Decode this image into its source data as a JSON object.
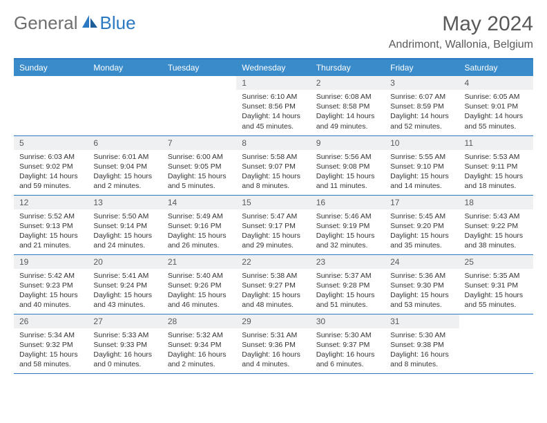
{
  "brand": {
    "part1": "General",
    "part2": "Blue"
  },
  "title": "May 2024",
  "location": "Andrimont, Wallonia, Belgium",
  "colors": {
    "header_bg": "#3a8bca",
    "accent_line": "#2b79c2",
    "daynum_bg": "#eef0f1",
    "text": "#333333",
    "muted_text": "#595959",
    "brand_grey": "#6e6e6e",
    "brand_blue": "#2b79c2",
    "page_bg": "#ffffff"
  },
  "weekdays": [
    "Sunday",
    "Monday",
    "Tuesday",
    "Wednesday",
    "Thursday",
    "Friday",
    "Saturday"
  ],
  "layout": {
    "cols": 7,
    "rows": 5,
    "first_weekday_index": 3,
    "days_in_month": 31
  },
  "days": {
    "1": {
      "sunrise": "6:10 AM",
      "sunset": "8:56 PM",
      "daylight": "14 hours and 45 minutes."
    },
    "2": {
      "sunrise": "6:08 AM",
      "sunset": "8:58 PM",
      "daylight": "14 hours and 49 minutes."
    },
    "3": {
      "sunrise": "6:07 AM",
      "sunset": "8:59 PM",
      "daylight": "14 hours and 52 minutes."
    },
    "4": {
      "sunrise": "6:05 AM",
      "sunset": "9:01 PM",
      "daylight": "14 hours and 55 minutes."
    },
    "5": {
      "sunrise": "6:03 AM",
      "sunset": "9:02 PM",
      "daylight": "14 hours and 59 minutes."
    },
    "6": {
      "sunrise": "6:01 AM",
      "sunset": "9:04 PM",
      "daylight": "15 hours and 2 minutes."
    },
    "7": {
      "sunrise": "6:00 AM",
      "sunset": "9:05 PM",
      "daylight": "15 hours and 5 minutes."
    },
    "8": {
      "sunrise": "5:58 AM",
      "sunset": "9:07 PM",
      "daylight": "15 hours and 8 minutes."
    },
    "9": {
      "sunrise": "5:56 AM",
      "sunset": "9:08 PM",
      "daylight": "15 hours and 11 minutes."
    },
    "10": {
      "sunrise": "5:55 AM",
      "sunset": "9:10 PM",
      "daylight": "15 hours and 14 minutes."
    },
    "11": {
      "sunrise": "5:53 AM",
      "sunset": "9:11 PM",
      "daylight": "15 hours and 18 minutes."
    },
    "12": {
      "sunrise": "5:52 AM",
      "sunset": "9:13 PM",
      "daylight": "15 hours and 21 minutes."
    },
    "13": {
      "sunrise": "5:50 AM",
      "sunset": "9:14 PM",
      "daylight": "15 hours and 24 minutes."
    },
    "14": {
      "sunrise": "5:49 AM",
      "sunset": "9:16 PM",
      "daylight": "15 hours and 26 minutes."
    },
    "15": {
      "sunrise": "5:47 AM",
      "sunset": "9:17 PM",
      "daylight": "15 hours and 29 minutes."
    },
    "16": {
      "sunrise": "5:46 AM",
      "sunset": "9:19 PM",
      "daylight": "15 hours and 32 minutes."
    },
    "17": {
      "sunrise": "5:45 AM",
      "sunset": "9:20 PM",
      "daylight": "15 hours and 35 minutes."
    },
    "18": {
      "sunrise": "5:43 AM",
      "sunset": "9:22 PM",
      "daylight": "15 hours and 38 minutes."
    },
    "19": {
      "sunrise": "5:42 AM",
      "sunset": "9:23 PM",
      "daylight": "15 hours and 40 minutes."
    },
    "20": {
      "sunrise": "5:41 AM",
      "sunset": "9:24 PM",
      "daylight": "15 hours and 43 minutes."
    },
    "21": {
      "sunrise": "5:40 AM",
      "sunset": "9:26 PM",
      "daylight": "15 hours and 46 minutes."
    },
    "22": {
      "sunrise": "5:38 AM",
      "sunset": "9:27 PM",
      "daylight": "15 hours and 48 minutes."
    },
    "23": {
      "sunrise": "5:37 AM",
      "sunset": "9:28 PM",
      "daylight": "15 hours and 51 minutes."
    },
    "24": {
      "sunrise": "5:36 AM",
      "sunset": "9:30 PM",
      "daylight": "15 hours and 53 minutes."
    },
    "25": {
      "sunrise": "5:35 AM",
      "sunset": "9:31 PM",
      "daylight": "15 hours and 55 minutes."
    },
    "26": {
      "sunrise": "5:34 AM",
      "sunset": "9:32 PM",
      "daylight": "15 hours and 58 minutes."
    },
    "27": {
      "sunrise": "5:33 AM",
      "sunset": "9:33 PM",
      "daylight": "16 hours and 0 minutes."
    },
    "28": {
      "sunrise": "5:32 AM",
      "sunset": "9:34 PM",
      "daylight": "16 hours and 2 minutes."
    },
    "29": {
      "sunrise": "5:31 AM",
      "sunset": "9:36 PM",
      "daylight": "16 hours and 4 minutes."
    },
    "30": {
      "sunrise": "5:30 AM",
      "sunset": "9:37 PM",
      "daylight": "16 hours and 6 minutes."
    },
    "31": {
      "sunrise": "5:30 AM",
      "sunset": "9:38 PM",
      "daylight": "16 hours and 8 minutes."
    }
  },
  "labels": {
    "sunrise": "Sunrise:",
    "sunset": "Sunset:",
    "daylight": "Daylight:"
  }
}
